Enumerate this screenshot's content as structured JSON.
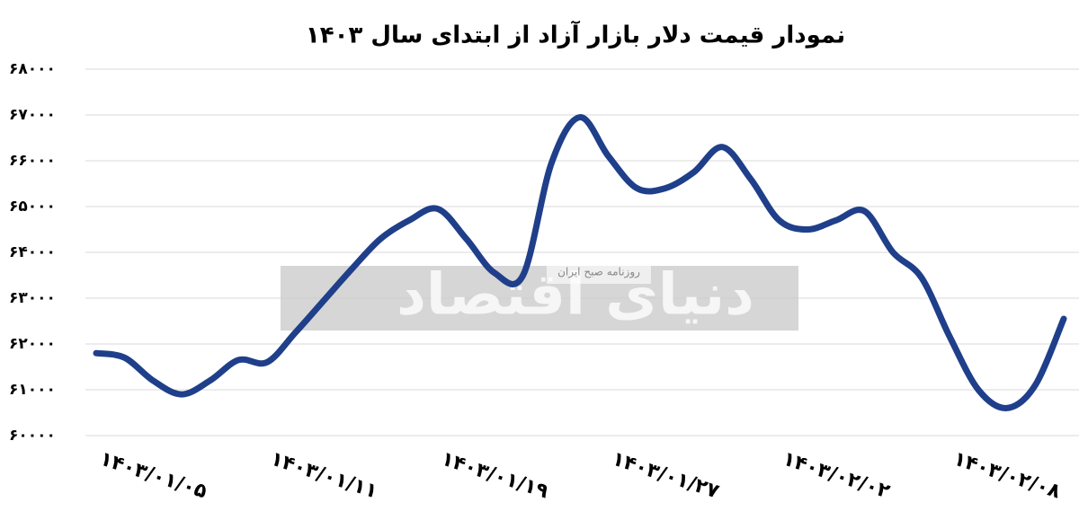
{
  "chart_data": {
    "type": "line",
    "title": "نمودار قیمت دلار بازار آزاد از ابتدای سال ۱۴۰۳",
    "watermark": {
      "brand": "دنیای اقتصاد",
      "tagline": "روزنامه صبح ایران"
    },
    "categories": [
      null,
      null,
      "۱۴۰۳/۰۱/۰۵",
      null,
      null,
      null,
      null,
      null,
      "۱۴۰۳/۰۱/۱۱",
      null,
      null,
      null,
      null,
      null,
      "۱۴۰۳/۰۱/۱۹",
      null,
      null,
      null,
      null,
      null,
      "۱۴۰۳/۰۱/۲۷",
      null,
      null,
      null,
      null,
      null,
      "۱۴۰۳/۰۲/۰۲",
      null,
      null,
      null,
      null,
      null,
      "۱۴۰۳/۰۲/۰۸",
      null,
      null
    ],
    "series": [
      {
        "name": "قیمت دلار",
        "color": "#1f3f8a",
        "values": [
          61800,
          61700,
          61200,
          60900,
          61200,
          61650,
          61600,
          62250,
          62950,
          63650,
          64300,
          64700,
          64950,
          64300,
          63550,
          63500,
          65950,
          66950,
          66100,
          65400,
          65400,
          65750,
          66300,
          65600,
          64700,
          64500,
          64700,
          64900,
          64000,
          63450,
          62150,
          61000,
          60600,
          61100,
          62550
        ]
      }
    ],
    "ylim": [
      60000,
      68000
    ],
    "yticks": [
      {
        "value": 60000,
        "label": "۶۰۰۰۰"
      },
      {
        "value": 61000,
        "label": "۶۱۰۰۰"
      },
      {
        "value": 62000,
        "label": "۶۲۰۰۰"
      },
      {
        "value": 63000,
        "label": "۶۳۰۰۰"
      },
      {
        "value": 64000,
        "label": "۶۴۰۰۰"
      },
      {
        "value": 65000,
        "label": "۶۵۰۰۰"
      },
      {
        "value": 66000,
        "label": "۶۶۰۰۰"
      },
      {
        "value": 67000,
        "label": "۶۷۰۰۰"
      },
      {
        "value": 68000,
        "label": "۶۸۰۰۰"
      }
    ],
    "grid": true
  }
}
